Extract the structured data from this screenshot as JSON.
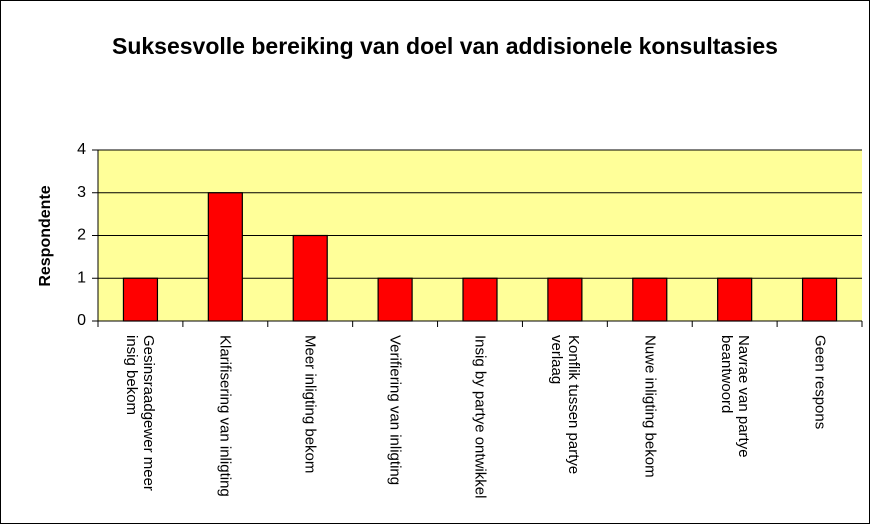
{
  "chart_data": {
    "type": "bar",
    "title": "Suksesvolle bereiking van doel van addisionele konsultasies",
    "y_label": "Respondente",
    "categories": [
      "Gesinsraadgewer meer insig bekom",
      "Klarifisering van inligting",
      "Meer inligting bekom",
      "Verifiering van inligting",
      "Insig by partye ontwikkel",
      "Konflik tussen partye verlaag",
      "Nuwe inligting bekom",
      "Navrae van partye beantwoord",
      "Geen respons"
    ],
    "values": [
      1,
      3,
      2,
      1,
      1,
      1,
      1,
      1,
      1
    ],
    "color": "#ff0000",
    "ylim": [
      0,
      4
    ],
    "yticks": [
      0,
      1,
      2,
      3,
      4
    ],
    "grid": true
  }
}
